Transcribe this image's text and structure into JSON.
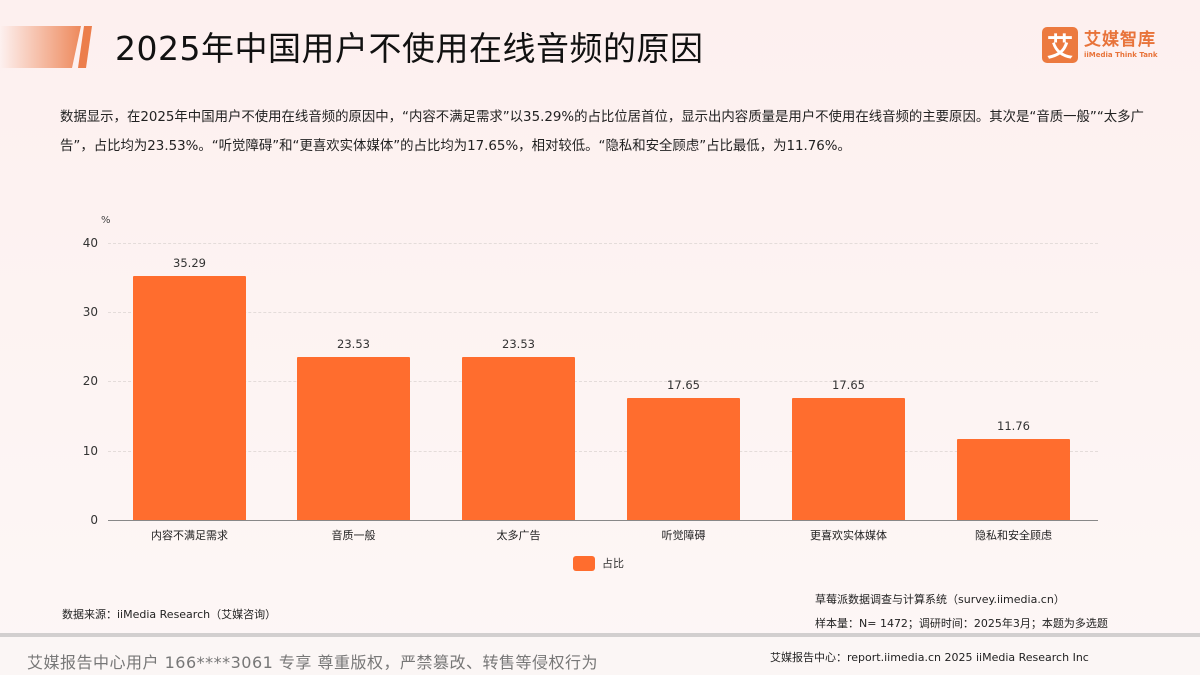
{
  "header": {
    "title": "2025年中国用户不使用在线音频的原因",
    "logo": {
      "mark": "艾",
      "name_cn": "艾媒智库",
      "name_en": "iiMedia Think Tank",
      "color": "#ec7a3f"
    }
  },
  "description": "数据显示，在2025年中国用户不使用在线音频的原因中，“内容不满足需求”以35.29%的占比位居首位，显示出内容质量是用户不使用在线音频的主要原因。其次是“音质一般”“太多广告”，占比均为23.53%。“听觉障碍”和“更喜欢实体媒体”的占比均为17.65%，相对较低。“隐私和安全顾虑”占比最低，为11.76%。",
  "chart_data": {
    "type": "bar",
    "title": "2025年中国用户不使用在线音频的原因",
    "xlabel": "",
    "ylabel": "%",
    "ylim": [
      0,
      40
    ],
    "yticks": [
      "0",
      "10",
      "20",
      "30",
      "40"
    ],
    "grid": true,
    "legend_position": "bottom",
    "categories": [
      "内容不满足需求",
      "音质一般",
      "太多广告",
      "听觉障碍",
      "更喜欢实体媒体",
      "隐私和安全顾虑"
    ],
    "series": [
      {
        "name": "占比",
        "color": "#ff6d2e",
        "values": [
          35.29,
          23.53,
          23.53,
          17.65,
          17.65,
          11.76
        ]
      }
    ],
    "value_labels": [
      "35.29",
      "23.53",
      "23.53",
      "17.65",
      "17.65",
      "11.76"
    ]
  },
  "source": "数据来源：iiMedia Research（艾媒咨询）",
  "notes": [
    "草莓派数据调查与计算系统（survey.iimedia.cn）",
    "样本量：N= 1472；调研时间：2025年3月；本题为多选题"
  ],
  "footer": {
    "left": "艾媒报告中心用户 166****3061 专享 尊重版权，严禁篡改、转售等侵权行为",
    "right": "艾媒报告中心：report.iimedia.cn   2025 iiMedia Research Inc"
  }
}
